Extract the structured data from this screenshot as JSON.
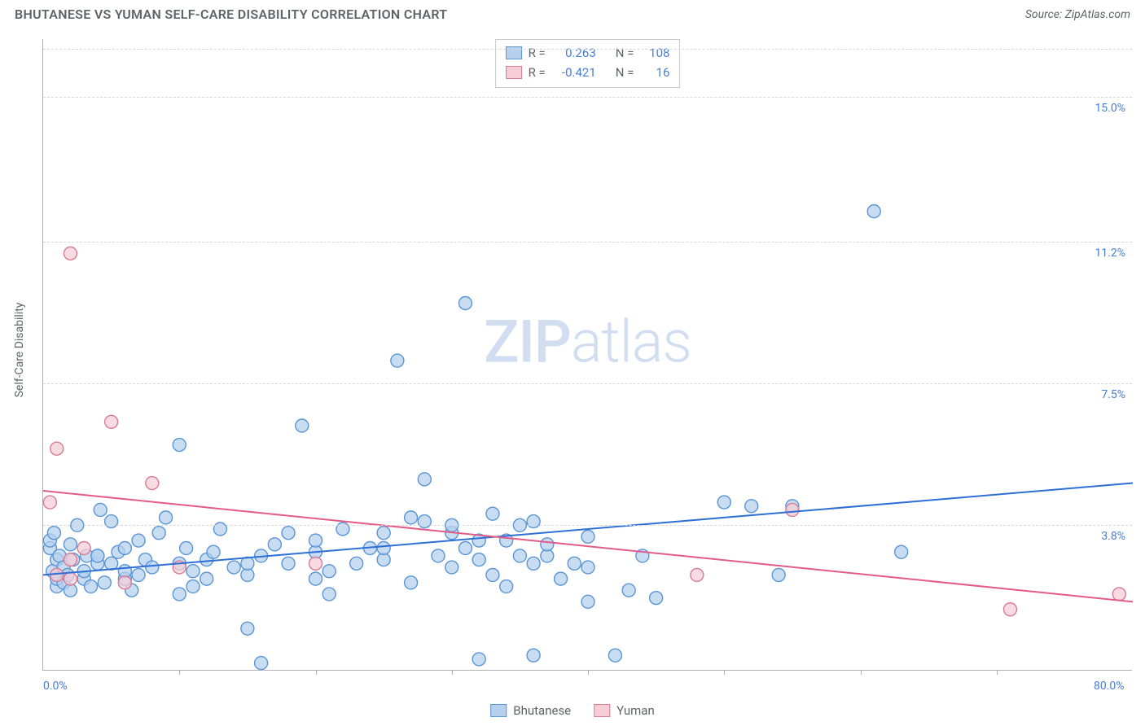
{
  "title": "BHUTANESE VS YUMAN SELF-CARE DISABILITY CORRELATION CHART",
  "source_label": "Source: ZipAtlas.com",
  "watermark": {
    "bold": "ZIP",
    "light": "atlas"
  },
  "ylabel": "Self-Care Disability",
  "xlim": [
    0,
    80
  ],
  "ylim": [
    0,
    16.5
  ],
  "x_ticks_labeled": [
    {
      "v": 0,
      "label": "0.0%"
    },
    {
      "v": 80,
      "label": "80.0%"
    }
  ],
  "x_ticks_minor": [
    10,
    20,
    30,
    40,
    50,
    60,
    70
  ],
  "y_ticks": [
    {
      "v": 3.8,
      "label": "3.8%"
    },
    {
      "v": 7.5,
      "label": "7.5%"
    },
    {
      "v": 11.2,
      "label": "11.2%"
    },
    {
      "v": 15.0,
      "label": "15.0%"
    }
  ],
  "marker_radius": 8,
  "marker_stroke_width": 1.4,
  "trend_width": 2,
  "series": [
    {
      "name": "Bhutanese",
      "fill": "#b6d0ee",
      "stroke": "#5a95d6",
      "trend_color": "#2e6fd6",
      "R": "0.263",
      "N": "108",
      "trend": {
        "x1": 0,
        "y1": 2.5,
        "x2": 80,
        "y2": 4.9
      },
      "points": [
        [
          0.5,
          3.2
        ],
        [
          0.5,
          3.4
        ],
        [
          0.7,
          2.6
        ],
        [
          0.8,
          3.6
        ],
        [
          1,
          2.2
        ],
        [
          1,
          2.4
        ],
        [
          1,
          2.9
        ],
        [
          1.2,
          3.0
        ],
        [
          1.5,
          2.3
        ],
        [
          1.5,
          2.7
        ],
        [
          1.8,
          2.5
        ],
        [
          2,
          2.1
        ],
        [
          2,
          3.3
        ],
        [
          2.2,
          2.9
        ],
        [
          2.5,
          3.8
        ],
        [
          3,
          2.4
        ],
        [
          3,
          2.6
        ],
        [
          3.2,
          3.0
        ],
        [
          3.5,
          2.2
        ],
        [
          4,
          2.8
        ],
        [
          4,
          3.0
        ],
        [
          4,
          3.0
        ],
        [
          4.2,
          4.2
        ],
        [
          4.5,
          2.3
        ],
        [
          5,
          2.8
        ],
        [
          5,
          3.9
        ],
        [
          5.5,
          3.1
        ],
        [
          6,
          2.4
        ],
        [
          6,
          2.6
        ],
        [
          6,
          3.2
        ],
        [
          6.5,
          2.1
        ],
        [
          7,
          2.5
        ],
        [
          7,
          3.4
        ],
        [
          7.5,
          2.9
        ],
        [
          8,
          2.7
        ],
        [
          8.5,
          3.6
        ],
        [
          9,
          4.0
        ],
        [
          10,
          2.0
        ],
        [
          10,
          2.8
        ],
        [
          10,
          5.9
        ],
        [
          10.5,
          3.2
        ],
        [
          11,
          2.2
        ],
        [
          11,
          2.6
        ],
        [
          12,
          2.4
        ],
        [
          12,
          2.9
        ],
        [
          12.5,
          3.1
        ],
        [
          13,
          3.7
        ],
        [
          14,
          2.7
        ],
        [
          15,
          2.5
        ],
        [
          15,
          2.8
        ],
        [
          15,
          1.1
        ],
        [
          16,
          0.2
        ],
        [
          16,
          3.0
        ],
        [
          17,
          3.3
        ],
        [
          18,
          2.8
        ],
        [
          18,
          3.6
        ],
        [
          19,
          6.4
        ],
        [
          20,
          2.4
        ],
        [
          20,
          3.1
        ],
        [
          20,
          3.4
        ],
        [
          21,
          2.0
        ],
        [
          21,
          2.6
        ],
        [
          22,
          3.7
        ],
        [
          23,
          2.8
        ],
        [
          24,
          3.2
        ],
        [
          25,
          2.9
        ],
        [
          25,
          3.2
        ],
        [
          25,
          3.6
        ],
        [
          26,
          8.1
        ],
        [
          27,
          2.3
        ],
        [
          27,
          4.0
        ],
        [
          28,
          3.9
        ],
        [
          28,
          5.0
        ],
        [
          29,
          3.0
        ],
        [
          30,
          2.7
        ],
        [
          30,
          3.6
        ],
        [
          30,
          3.8
        ],
        [
          31,
          3.2
        ],
        [
          31,
          9.6
        ],
        [
          32,
          0.3
        ],
        [
          32,
          2.9
        ],
        [
          32,
          3.4
        ],
        [
          33,
          2.5
        ],
        [
          33,
          4.1
        ],
        [
          34,
          2.2
        ],
        [
          34,
          3.4
        ],
        [
          35,
          3.0
        ],
        [
          35,
          3.8
        ],
        [
          36,
          0.4
        ],
        [
          36,
          2.8
        ],
        [
          36,
          3.9
        ],
        [
          37,
          3.0
        ],
        [
          37,
          3.3
        ],
        [
          38,
          2.4
        ],
        [
          39,
          2.8
        ],
        [
          40,
          1.8
        ],
        [
          40,
          2.7
        ],
        [
          40,
          3.5
        ],
        [
          42,
          0.4
        ],
        [
          43,
          2.1
        ],
        [
          44,
          3.0
        ],
        [
          45,
          1.9
        ],
        [
          50,
          4.4
        ],
        [
          52,
          4.3
        ],
        [
          54,
          2.5
        ],
        [
          55,
          4.3
        ],
        [
          61,
          12.0
        ],
        [
          63,
          3.1
        ]
      ]
    },
    {
      "name": "Yuman",
      "fill": "#f6cdd7",
      "stroke": "#d67b98",
      "trend_color": "#e45a88",
      "R": "-0.421",
      "N": "16",
      "trend": {
        "x1": 0,
        "y1": 4.7,
        "x2": 80,
        "y2": 1.8
      },
      "points": [
        [
          0.5,
          4.4
        ],
        [
          1,
          2.5
        ],
        [
          1,
          5.8
        ],
        [
          2,
          10.9
        ],
        [
          2,
          2.4
        ],
        [
          2,
          2.9
        ],
        [
          3,
          3.2
        ],
        [
          5,
          6.5
        ],
        [
          6,
          2.3
        ],
        [
          8,
          4.9
        ],
        [
          10,
          2.7
        ],
        [
          20,
          2.8
        ],
        [
          48,
          2.5
        ],
        [
          55,
          4.2
        ],
        [
          71,
          1.6
        ],
        [
          79,
          2.0
        ]
      ]
    }
  ],
  "legend_labels": {
    "R": "R =",
    "N": "N ="
  },
  "bottom_legend": [
    {
      "label": "Bhutanese",
      "fill": "#b6d0ee",
      "stroke": "#5a95d6"
    },
    {
      "label": "Yuman",
      "fill": "#f6cdd7",
      "stroke": "#d67b98"
    }
  ],
  "colors": {
    "tick_text": "#4a7dd6",
    "axis_text": "#5f6368"
  }
}
